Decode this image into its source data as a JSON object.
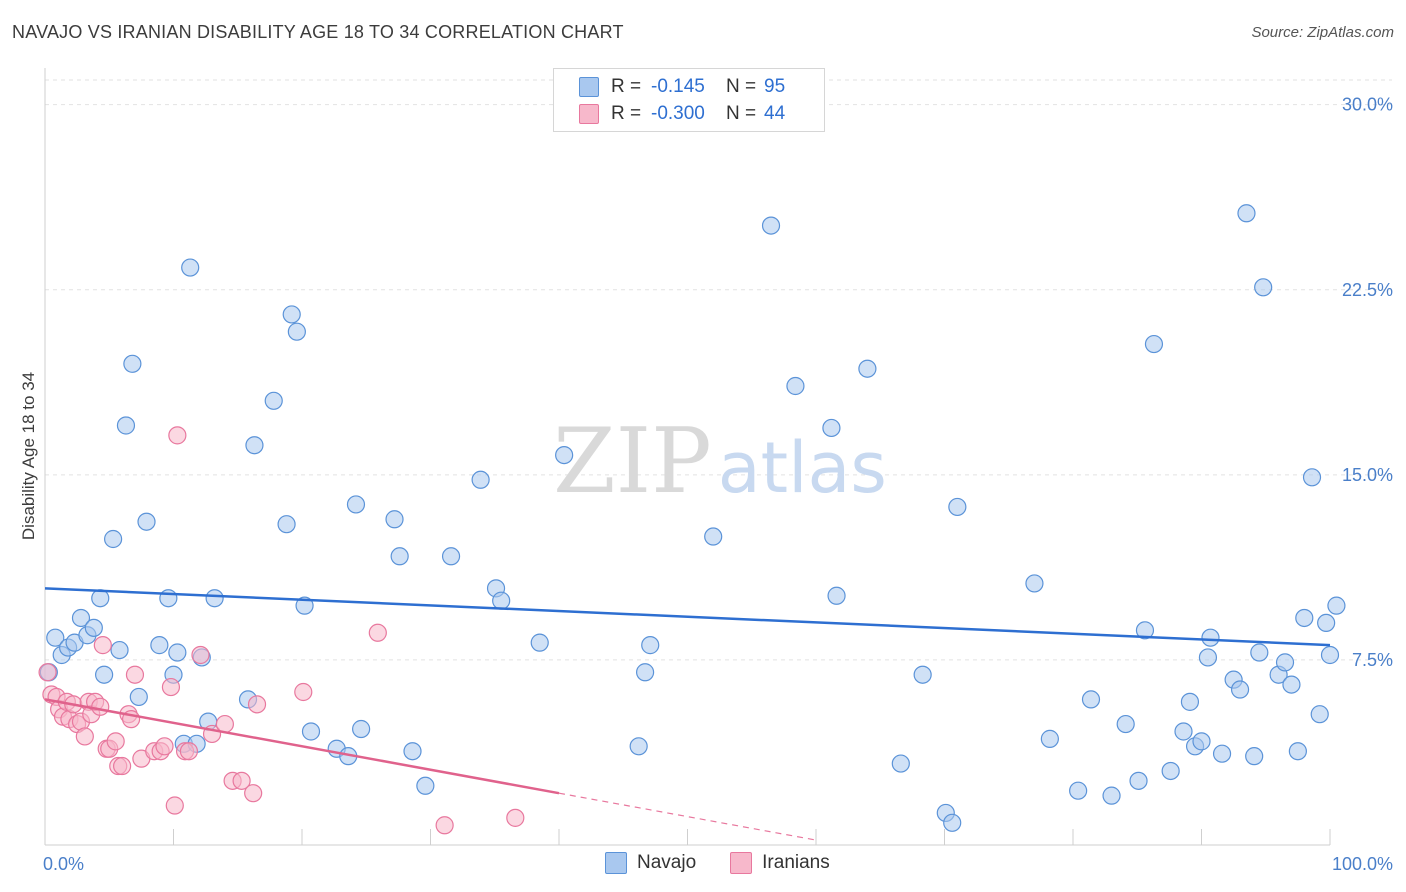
{
  "title": "NAVAJO VS IRANIAN DISABILITY AGE 18 TO 34 CORRELATION CHART",
  "source": "Source: ZipAtlas.com",
  "watermark": {
    "zip": "ZIP",
    "atlas": "atlas"
  },
  "legend": [
    {
      "r_label": "R =",
      "r_value": "-0.145",
      "n_label": "N =",
      "n_value": "95",
      "color": "#a9c8ef",
      "stroke": "#5b93d8"
    },
    {
      "r_label": "R =",
      "r_value": "-0.300",
      "n_label": "N =",
      "n_value": "44",
      "color": "#f7b8cb",
      "stroke": "#e8789e"
    }
  ],
  "bottom_legend": [
    {
      "label": "Navajo",
      "color": "#a9c8ef",
      "stroke": "#5b93d8"
    },
    {
      "label": "Iranians",
      "color": "#f7b8cb",
      "stroke": "#e8789e"
    }
  ],
  "chart_data": {
    "type": "scatter",
    "title": "NAVAJO VS IRANIAN DISABILITY AGE 18 TO 34 CORRELATION CHART",
    "xlabel": "",
    "ylabel": "Disability Age 18 to 34",
    "xlim": [
      0,
      100
    ],
    "ylim": [
      0,
      31
    ],
    "x_tick_labels": [
      {
        "value": 0,
        "label": "0.0%"
      },
      {
        "value": 100,
        "label": "100.0%"
      }
    ],
    "y_ticks": [
      {
        "value": 7.5,
        "label": "7.5%"
      },
      {
        "value": 15,
        "label": "15.0%"
      },
      {
        "value": 22.5,
        "label": "22.5%"
      },
      {
        "value": 30,
        "label": "30.0%"
      }
    ],
    "series": [
      {
        "name": "Navajo",
        "color": "#a9c8ef",
        "stroke": "#5b93d8",
        "points": [
          [
            0.3,
            7.0
          ],
          [
            0.8,
            8.4
          ],
          [
            1.3,
            7.7
          ],
          [
            1.8,
            8.0
          ],
          [
            2.3,
            8.2
          ],
          [
            2.8,
            9.2
          ],
          [
            3.3,
            8.5
          ],
          [
            3.8,
            8.8
          ],
          [
            4.3,
            10.0
          ],
          [
            4.6,
            6.9
          ],
          [
            5.3,
            12.4
          ],
          [
            5.8,
            7.9
          ],
          [
            6.3,
            17.0
          ],
          [
            6.8,
            19.5
          ],
          [
            7.3,
            6.0
          ],
          [
            7.9,
            13.1
          ],
          [
            8.9,
            8.1
          ],
          [
            9.6,
            10.0
          ],
          [
            10.0,
            6.9
          ],
          [
            10.3,
            7.8
          ],
          [
            10.8,
            4.1
          ],
          [
            11.3,
            23.4
          ],
          [
            11.8,
            4.1
          ],
          [
            12.2,
            7.6
          ],
          [
            12.7,
            5.0
          ],
          [
            13.2,
            10.0
          ],
          [
            15.8,
            5.9
          ],
          [
            16.3,
            16.2
          ],
          [
            17.8,
            18.0
          ],
          [
            18.8,
            13.0
          ],
          [
            19.2,
            21.5
          ],
          [
            19.6,
            20.8
          ],
          [
            20.2,
            9.7
          ],
          [
            20.7,
            4.6
          ],
          [
            22.7,
            3.9
          ],
          [
            23.6,
            3.6
          ],
          [
            24.2,
            13.8
          ],
          [
            24.6,
            4.7
          ],
          [
            27.2,
            13.2
          ],
          [
            27.6,
            11.7
          ],
          [
            28.6,
            3.8
          ],
          [
            29.6,
            2.4
          ],
          [
            31.6,
            11.7
          ],
          [
            33.9,
            14.8
          ],
          [
            35.1,
            10.4
          ],
          [
            35.5,
            9.9
          ],
          [
            38.5,
            8.2
          ],
          [
            40.4,
            15.8
          ],
          [
            46.2,
            4.0
          ],
          [
            46.7,
            7.0
          ],
          [
            47.1,
            8.1
          ],
          [
            52.0,
            12.5
          ],
          [
            56.5,
            25.1
          ],
          [
            58.4,
            18.6
          ],
          [
            61.2,
            16.9
          ],
          [
            61.6,
            10.1
          ],
          [
            64.0,
            19.3
          ],
          [
            66.6,
            3.3
          ],
          [
            68.3,
            6.9
          ],
          [
            70.1,
            1.3
          ],
          [
            70.6,
            0.9
          ],
          [
            71.0,
            13.7
          ],
          [
            77.0,
            10.6
          ],
          [
            78.2,
            4.3
          ],
          [
            80.4,
            2.2
          ],
          [
            81.4,
            5.9
          ],
          [
            83.0,
            2.0
          ],
          [
            84.1,
            4.9
          ],
          [
            85.1,
            2.6
          ],
          [
            85.6,
            8.7
          ],
          [
            86.3,
            20.3
          ],
          [
            87.6,
            3.0
          ],
          [
            88.6,
            4.6
          ],
          [
            89.1,
            5.8
          ],
          [
            89.5,
            4.0
          ],
          [
            90.0,
            4.2
          ],
          [
            90.5,
            7.6
          ],
          [
            90.7,
            8.4
          ],
          [
            91.6,
            3.7
          ],
          [
            92.5,
            6.7
          ],
          [
            93.0,
            6.3
          ],
          [
            93.5,
            25.6
          ],
          [
            94.1,
            3.6
          ],
          [
            94.5,
            7.8
          ],
          [
            94.8,
            22.6
          ],
          [
            96.0,
            6.9
          ],
          [
            96.5,
            7.4
          ],
          [
            97.0,
            6.5
          ],
          [
            97.5,
            3.8
          ],
          [
            98.0,
            9.2
          ],
          [
            98.6,
            14.9
          ],
          [
            99.2,
            5.3
          ],
          [
            99.7,
            9.0
          ],
          [
            100.0,
            7.7
          ],
          [
            100.5,
            9.7
          ]
        ]
      },
      {
        "name": "Iranians",
        "color": "#f7b8cb",
        "stroke": "#e8789e",
        "points": [
          [
            0.2,
            7.0
          ],
          [
            0.5,
            6.1
          ],
          [
            0.9,
            6.0
          ],
          [
            1.1,
            5.5
          ],
          [
            1.4,
            5.2
          ],
          [
            1.7,
            5.8
          ],
          [
            1.9,
            5.1
          ],
          [
            2.2,
            5.7
          ],
          [
            2.5,
            4.9
          ],
          [
            2.8,
            5.0
          ],
          [
            3.1,
            4.4
          ],
          [
            3.4,
            5.8
          ],
          [
            3.6,
            5.3
          ],
          [
            3.9,
            5.8
          ],
          [
            4.3,
            5.6
          ],
          [
            4.5,
            8.1
          ],
          [
            4.8,
            3.9
          ],
          [
            5.0,
            3.9
          ],
          [
            5.5,
            4.2
          ],
          [
            5.7,
            3.2
          ],
          [
            6.0,
            3.2
          ],
          [
            6.5,
            5.3
          ],
          [
            6.7,
            5.1
          ],
          [
            7.0,
            6.9
          ],
          [
            7.5,
            3.5
          ],
          [
            8.5,
            3.8
          ],
          [
            9.0,
            3.8
          ],
          [
            9.3,
            4.0
          ],
          [
            9.8,
            6.4
          ],
          [
            10.1,
            1.6
          ],
          [
            10.9,
            3.8
          ],
          [
            11.2,
            3.8
          ],
          [
            12.1,
            7.7
          ],
          [
            13.0,
            4.5
          ],
          [
            14.0,
            4.9
          ],
          [
            14.6,
            2.6
          ],
          [
            15.3,
            2.6
          ],
          [
            16.2,
            2.1
          ],
          [
            16.5,
            5.7
          ],
          [
            20.1,
            6.2
          ],
          [
            25.9,
            8.6
          ],
          [
            31.1,
            0.8
          ],
          [
            36.6,
            1.1
          ],
          [
            10.3,
            16.6
          ]
        ]
      }
    ],
    "trendlines": [
      {
        "series": "Navajo",
        "x0": 0,
        "y0": 10.4,
        "x1": 100,
        "y1": 8.1
      },
      {
        "series": "Iranians",
        "x0": 0,
        "y0": 5.9,
        "x1": 40,
        "y1": 2.1,
        "dashed_to": {
          "x": 60,
          "y": 0.2
        }
      }
    ]
  }
}
